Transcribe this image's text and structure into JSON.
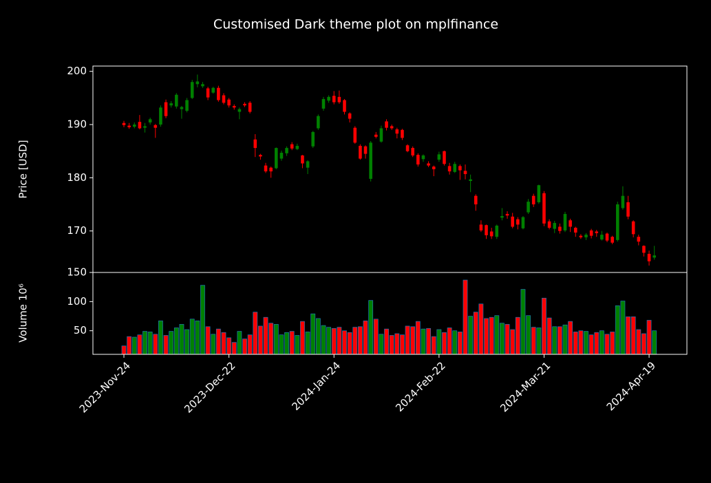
{
  "chart_data": {
    "type": "candlestick",
    "title": "Customised Dark theme plot on mplfinance",
    "ylabel": "Price [USD]",
    "volume_label": "Volume  10⁶",
    "up_color": "#008000",
    "down_color": "#ff0000",
    "volume_edge_color": "#1f77b4",
    "categories": [
      "2023-Nov-24",
      null,
      null,
      null,
      null,
      null,
      null,
      null,
      null,
      null,
      null,
      null,
      null,
      null,
      null,
      null,
      null,
      null,
      null,
      null,
      "2023-Dec-22",
      null,
      null,
      null,
      null,
      null,
      null,
      null,
      null,
      null,
      null,
      null,
      null,
      null,
      null,
      null,
      null,
      null,
      null,
      null,
      "2024-Jan-24",
      null,
      null,
      null,
      null,
      null,
      null,
      null,
      null,
      null,
      null,
      null,
      null,
      null,
      null,
      null,
      null,
      null,
      null,
      null,
      "2024-Feb-22",
      null,
      null,
      null,
      null,
      null,
      null,
      null,
      null,
      null,
      null,
      null,
      null,
      null,
      null,
      null,
      null,
      null,
      null,
      null,
      "2024-Mar-21",
      null,
      null,
      null,
      null,
      null,
      null,
      null,
      null,
      null,
      null,
      null,
      null,
      null,
      null,
      null,
      null,
      null,
      null,
      null,
      "2024-Apr-19",
      null
    ],
    "open": [
      190.3,
      189.8,
      189.6,
      190.5,
      189.4,
      190.4,
      189.9,
      190.0,
      194.2,
      193.6,
      193.4,
      192.9,
      192.6,
      195.0,
      197.6,
      197.2,
      196.8,
      196.0,
      196.9,
      195.5,
      194.7,
      193.5,
      192.4,
      193.9,
      194.1,
      187.2,
      184.3,
      182.3,
      181.9,
      181.8,
      183.6,
      184.6,
      186.3,
      185.4,
      184.2,
      181.9,
      185.9,
      189.3,
      193.0,
      194.5,
      195.4,
      195.2,
      194.6,
      192.1,
      189.4,
      186.0,
      185.9,
      179.8,
      188.1,
      186.8,
      190.6,
      189.7,
      189.1,
      189.0,
      186.1,
      185.6,
      184.3,
      183.5,
      182.7,
      182.1,
      183.4,
      185.0,
      182.2,
      181.1,
      182.2,
      181.3,
      179.4,
      176.6,
      171.2,
      171.1,
      169.9,
      168.9,
      172.5,
      173.2,
      172.7,
      172.2,
      170.5,
      173.5,
      176.6,
      175.4,
      177.1,
      171.8,
      170.4,
      170.8,
      170.1,
      172.0,
      170.6,
      169.1,
      168.8,
      170.1,
      169.9,
      168.4,
      169.5,
      168.9,
      168.3,
      174.3,
      175.4,
      171.8,
      168.9,
      167.2,
      165.7,
      165.0
    ],
    "high": [
      190.7,
      190.3,
      190.4,
      191.8,
      190.3,
      191.3,
      190.1,
      193.6,
      194.7,
      194.4,
      195.9,
      193.5,
      195.0,
      198.4,
      199.4,
      198.0,
      197.1,
      197.1,
      197.3,
      195.9,
      195.0,
      193.8,
      193.2,
      194.2,
      194.4,
      188.2,
      184.5,
      182.8,
      182.1,
      185.7,
      185.1,
      185.9,
      186.7,
      186.4,
      184.3,
      183.3,
      188.8,
      191.9,
      195.2,
      195.5,
      196.3,
      196.4,
      194.8,
      192.3,
      189.7,
      186.3,
      186.1,
      186.9,
      188.6,
      189.8,
      191.0,
      190.0,
      189.4,
      189.2,
      186.3,
      185.9,
      184.6,
      184.4,
      183.1,
      182.3,
      184.9,
      185.1,
      182.8,
      183.0,
      182.5,
      182.5,
      180.6,
      176.9,
      172.0,
      171.2,
      170.6,
      171.2,
      174.3,
      173.7,
      173.4,
      172.6,
      172.8,
      176.0,
      177.0,
      178.7,
      177.5,
      172.2,
      171.9,
      171.4,
      173.6,
      172.3,
      170.8,
      169.4,
      169.6,
      170.4,
      170.2,
      170.0,
      169.7,
      169.1,
      175.5,
      178.4,
      176.6,
      172.0,
      169.3,
      167.3,
      166.3,
      167.2
    ],
    "low": [
      189.5,
      189.2,
      189.3,
      189.1,
      188.5,
      190.0,
      187.5,
      189.6,
      191.2,
      193.2,
      193.0,
      191.1,
      192.3,
      194.8,
      197.0,
      196.9,
      194.6,
      195.8,
      194.3,
      193.8,
      193.2,
      192.8,
      191.0,
      193.3,
      192.1,
      183.9,
      183.4,
      180.9,
      180.0,
      181.6,
      183.2,
      184.1,
      185.2,
      185.2,
      181.8,
      180.7,
      185.6,
      189.0,
      192.6,
      194.1,
      193.8,
      193.9,
      191.9,
      190.4,
      186.4,
      183.4,
      183.6,
      179.3,
      187.4,
      186.6,
      188.9,
      189.0,
      187.4,
      187.1,
      184.8,
      183.9,
      182.1,
      183.0,
      182.0,
      180.3,
      183.0,
      182.3,
      180.6,
      180.9,
      179.6,
      179.7,
      177.3,
      173.8,
      169.8,
      168.5,
      168.5,
      168.5,
      172.0,
      172.3,
      170.5,
      170.3,
      170.3,
      173.2,
      174.5,
      175.1,
      170.9,
      170.3,
      169.6,
      169.5,
      169.8,
      169.8,
      168.9,
      168.5,
      168.3,
      168.6,
      168.9,
      168.2,
      167.9,
      167.5,
      168.0,
      174.0,
      172.2,
      168.8,
      167.3,
      165.2,
      163.5,
      164.6
    ],
    "close": [
      189.9,
      189.5,
      190.0,
      189.3,
      189.7,
      191.0,
      189.4,
      193.2,
      191.6,
      194.0,
      195.6,
      193.3,
      194.6,
      198.0,
      198.1,
      197.6,
      195.1,
      196.9,
      194.6,
      194.1,
      193.6,
      193.2,
      192.9,
      193.6,
      192.4,
      185.6,
      184.0,
      181.2,
      181.2,
      185.6,
      184.7,
      185.6,
      185.5,
      186.0,
      182.7,
      183.1,
      188.6,
      191.6,
      194.8,
      195.2,
      194.2,
      194.2,
      192.4,
      191.1,
      186.6,
      183.6,
      184.5,
      186.6,
      187.7,
      189.3,
      189.4,
      189.3,
      188.3,
      187.5,
      185.0,
      184.2,
      182.5,
      184.2,
      182.3,
      181.6,
      184.4,
      182.6,
      181.2,
      182.6,
      181.4,
      180.7,
      179.7,
      175.0,
      170.1,
      169.2,
      169.0,
      171.0,
      172.8,
      172.9,
      170.8,
      171.2,
      172.6,
      175.5,
      175.0,
      178.6,
      171.4,
      170.6,
      171.5,
      170.0,
      173.2,
      170.8,
      169.7,
      168.8,
      169.3,
      169.1,
      169.6,
      169.3,
      168.2,
      167.8,
      175.0,
      176.6,
      172.7,
      169.4,
      168.0,
      165.9,
      164.3,
      165.4
    ],
    "volume": [
      24,
      40,
      39,
      43,
      49,
      48,
      44,
      67,
      42,
      49,
      55,
      61,
      52,
      70,
      67,
      128,
      57,
      44,
      53,
      47,
      38,
      30,
      49,
      36,
      43,
      82,
      58,
      73,
      63,
      61,
      43,
      47,
      49,
      42,
      66,
      48,
      79,
      71,
      59,
      56,
      54,
      56,
      50,
      47,
      56,
      57,
      67,
      102,
      70,
      44,
      53,
      42,
      45,
      43,
      58,
      57,
      66,
      53,
      54,
      40,
      52,
      47,
      55,
      50,
      48,
      137,
      75,
      82,
      96,
      71,
      73,
      76,
      63,
      61,
      52,
      73,
      121,
      76,
      56,
      55,
      106,
      72,
      57,
      57,
      60,
      66,
      48,
      50,
      49,
      43,
      47,
      50,
      44,
      48,
      93,
      101,
      74,
      74,
      52,
      45,
      68,
      50
    ],
    "xlim": [
      -5.9,
      107.2
    ],
    "ylim": [
      162.2,
      201.0
    ],
    "yticks": [
      170,
      180,
      190,
      200
    ],
    "volume_ylim": [
      9.5,
      150
    ],
    "volume_yticks": [
      50,
      100,
      150
    ]
  }
}
